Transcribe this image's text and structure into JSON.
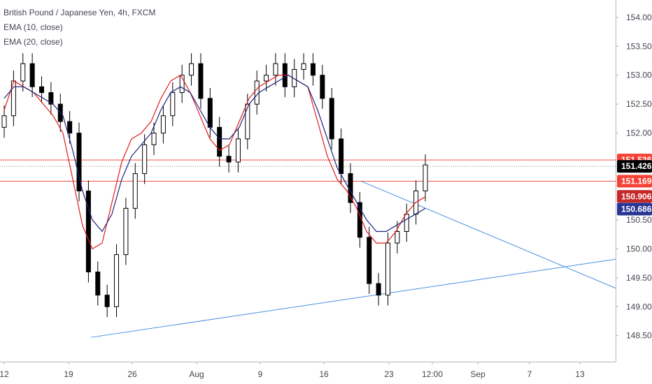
{
  "legend": {
    "title": "British Pound / Japanese Yen, 4h, FXCM",
    "ema10": "EMA (10, close)",
    "ema20": "EMA (20, close)"
  },
  "colors": {
    "candle": "#000000",
    "ema10": "#e31b1b",
    "ema20": "#1a237e",
    "trendline": "#4a90e2",
    "hline": "#ef5350",
    "axis_text": "#434651",
    "grid": "#e0e3eb"
  },
  "chart_data": {
    "type": "candlestick",
    "price_axis": {
      "range": [
        148.05,
        154.3
      ],
      "ticks": [
        "154.000",
        "153.500",
        "153.000",
        "152.500",
        "152.000",
        "150.500",
        "150.000",
        "149.500",
        "149.000",
        "148.500"
      ]
    },
    "time_axis": {
      "ticks": [
        "12",
        "19",
        "26",
        "Aug",
        "9",
        "16",
        "23",
        "12:00",
        "Sep",
        "7",
        "13"
      ]
    },
    "price_tags": [
      {
        "value": "151.536",
        "color": "#f44336"
      },
      {
        "value": "151.426",
        "color": "#000000"
      },
      {
        "value": "151.169",
        "color": "#f44336"
      },
      {
        "value": "150.906",
        "color": "#c62828"
      },
      {
        "value": "150.686",
        "color": "#283593"
      }
    ],
    "horizontal_lines": [
      151.536,
      151.169
    ],
    "trendlines": [
      {
        "x": [
          "Jul 21",
          "Sep 17"
        ],
        "y": [
          148.47,
          149.82
        ]
      },
      {
        "x": [
          "Aug 19",
          "Sep 16"
        ],
        "y": [
          151.17,
          149.32
        ]
      }
    ],
    "series": [
      {
        "name": "EMA (10, close)",
        "values": [
          152.4,
          152.9,
          152.8,
          152.7,
          152.5,
          152.3,
          152.0,
          151.2,
          150.4,
          150.0,
          150.1,
          150.8,
          151.5,
          151.9,
          152.0,
          152.2,
          152.6,
          152.9,
          153.0,
          152.7,
          152.3,
          151.9,
          151.7,
          151.8,
          152.2,
          152.6,
          152.8,
          152.9,
          153.0,
          153.0,
          152.9,
          152.8,
          152.2,
          151.6,
          151.2,
          151.0,
          150.7,
          150.3,
          150.1,
          150.1,
          150.3,
          150.6,
          150.8,
          150.9
        ]
      },
      {
        "name": "EMA (20, close)",
        "values": [
          152.6,
          152.8,
          152.8,
          152.7,
          152.6,
          152.5,
          152.3,
          151.7,
          151.0,
          150.5,
          150.3,
          150.6,
          151.2,
          151.6,
          151.8,
          152.0,
          152.4,
          152.7,
          152.8,
          152.7,
          152.4,
          152.1,
          151.9,
          151.9,
          152.1,
          152.5,
          152.7,
          152.8,
          152.9,
          153.0,
          152.9,
          152.8,
          152.4,
          151.9,
          151.4,
          151.1,
          150.8,
          150.5,
          150.3,
          150.3,
          150.4,
          150.5,
          150.6,
          150.7
        ]
      }
    ],
    "candles_close": [
      152.3,
      152.9,
      153.2,
      152.8,
      152.7,
      152.5,
      152.2,
      152.0,
      151.0,
      149.6,
      149.2,
      149.0,
      149.9,
      150.7,
      151.3,
      151.8,
      152.0,
      152.3,
      152.7,
      153.0,
      153.2,
      152.6,
      152.1,
      151.6,
      151.5,
      151.9,
      152.5,
      152.9,
      153.0,
      153.2,
      152.8,
      153.1,
      153.2,
      153.0,
      152.6,
      151.9,
      151.3,
      150.8,
      150.2,
      149.4,
      149.2,
      150.1,
      150.3,
      150.6,
      151.0,
      151.45
    ]
  }
}
